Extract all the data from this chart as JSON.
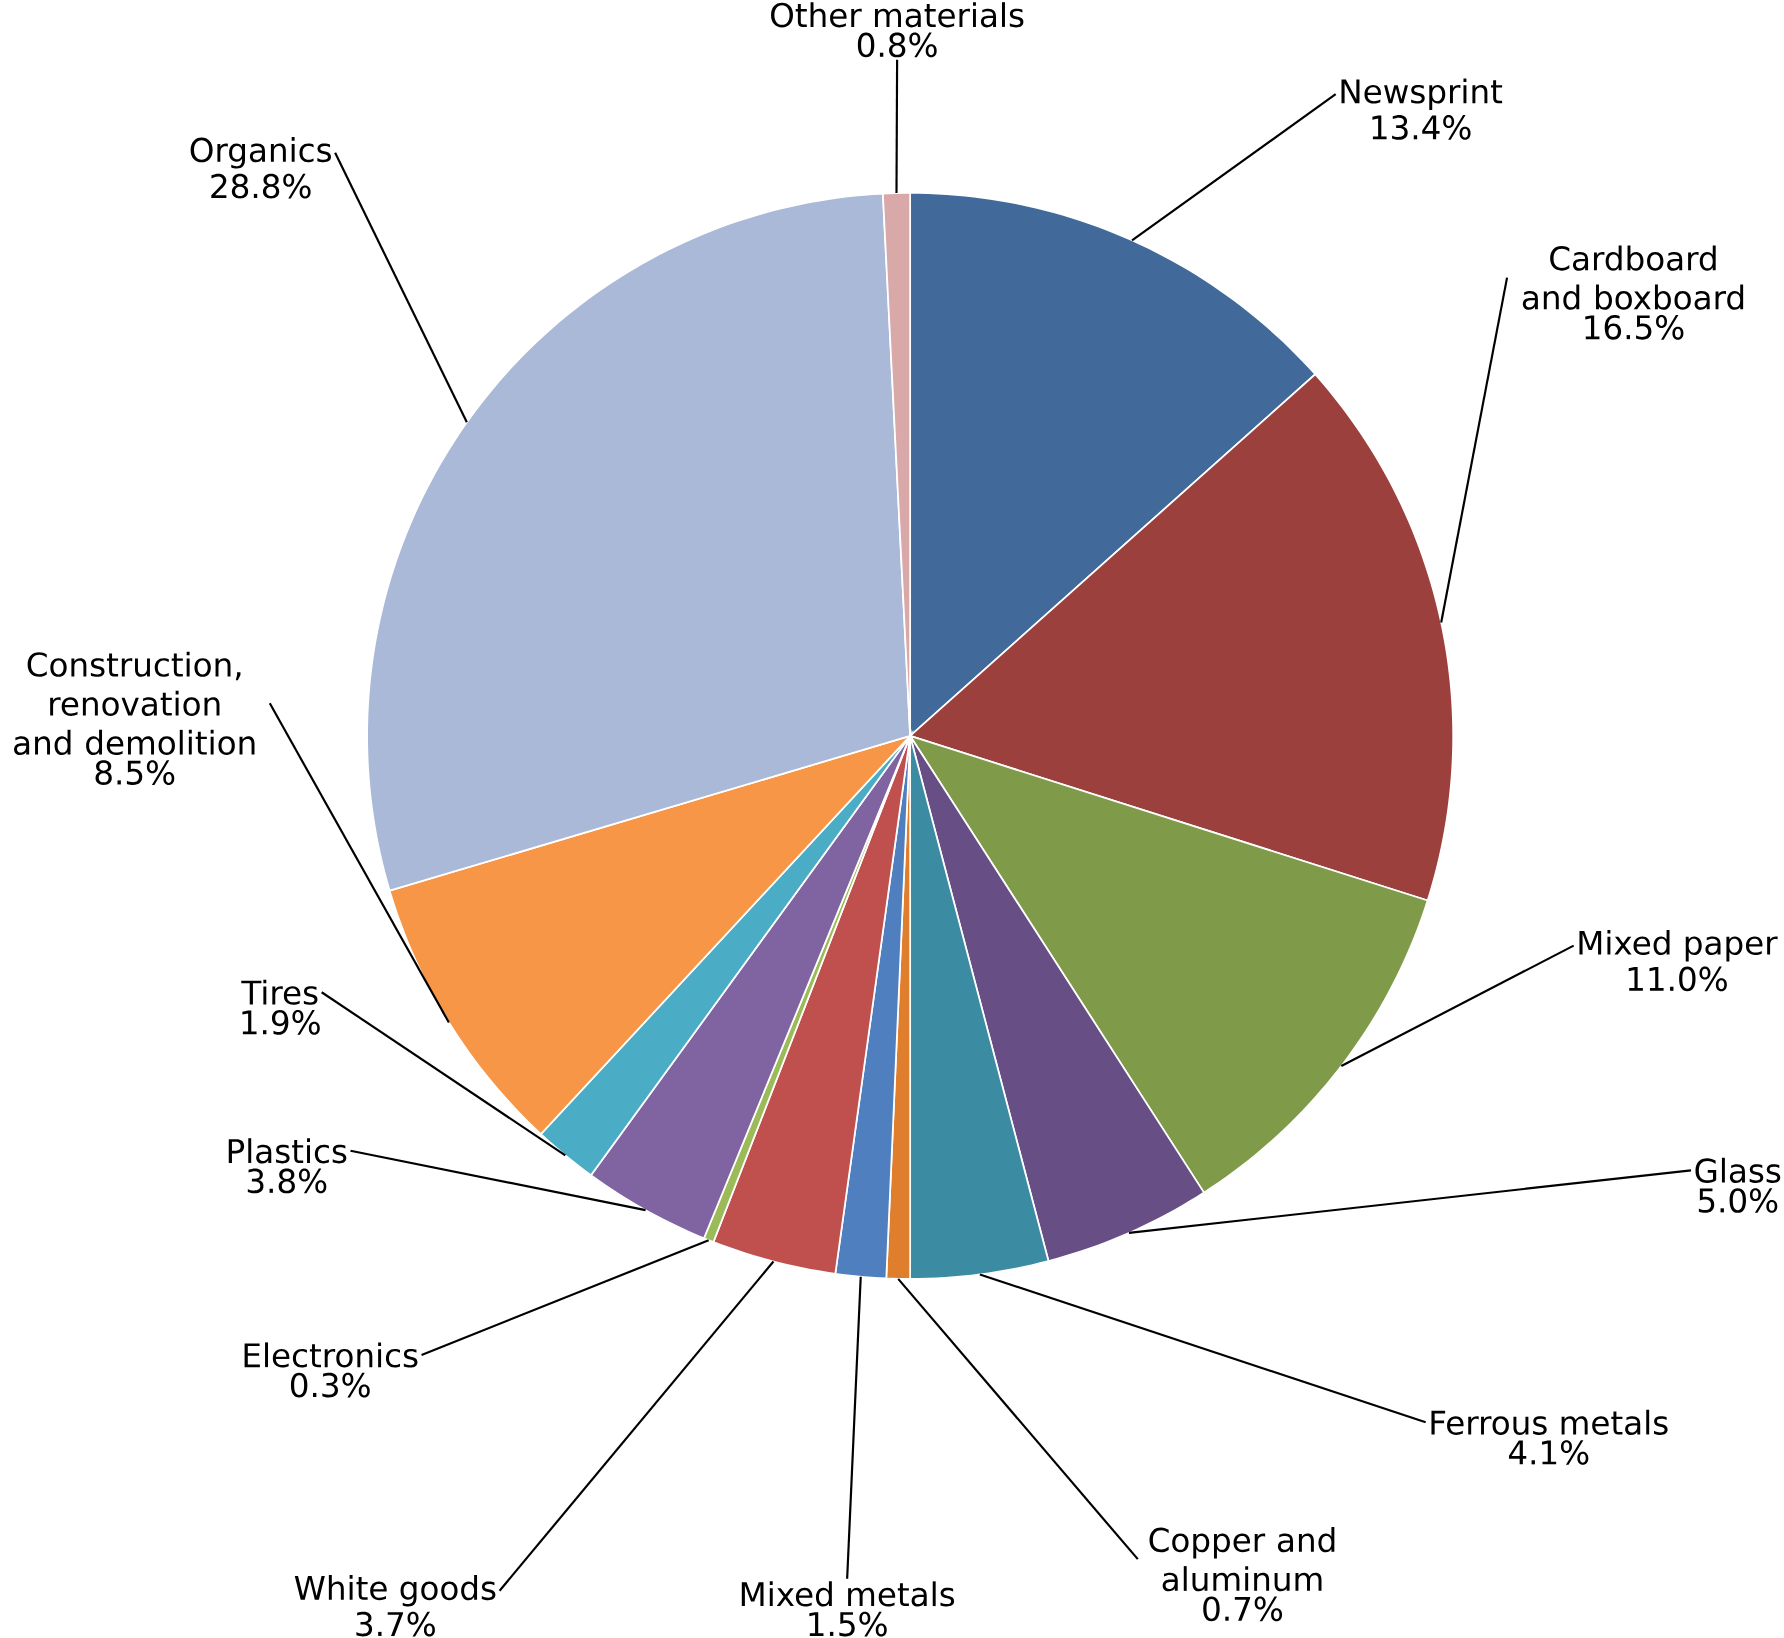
{
  "chart_data": {
    "type": "pie",
    "categories": [
      "Newsprint",
      "Cardboard and boxboard",
      "Mixed paper",
      "Glass",
      "Ferrous metals",
      "Copper and aluminum",
      "Mixed metals",
      "White goods",
      "Electronics",
      "Plastics",
      "Tires",
      "Construction, renovation and demolition",
      "Organics",
      "Other materials"
    ],
    "values": [
      13.4,
      16.5,
      11.0,
      5.0,
      4.1,
      0.7,
      1.5,
      3.7,
      0.3,
      3.8,
      1.9,
      8.5,
      28.8,
      0.8
    ],
    "value_labels": [
      "13.4%",
      "16.5%",
      "11.0%",
      "5.0%",
      "4.1%",
      "0.7%",
      "1.5%",
      "3.7%",
      "0.3%",
      "3.8%",
      "1.9%",
      "8.5%",
      "28.8%",
      "0.8%"
    ],
    "colors": [
      "#416a9b",
      "#9c403e",
      "#7f9a48",
      "#674e85",
      "#3b8ba2",
      "#df7f2d",
      "#4f7fbf",
      "#c0504d",
      "#9bbb59",
      "#8064a2",
      "#4bacc6",
      "#f79646",
      "#aab9d7",
      "#d9a9aa"
    ]
  }
}
